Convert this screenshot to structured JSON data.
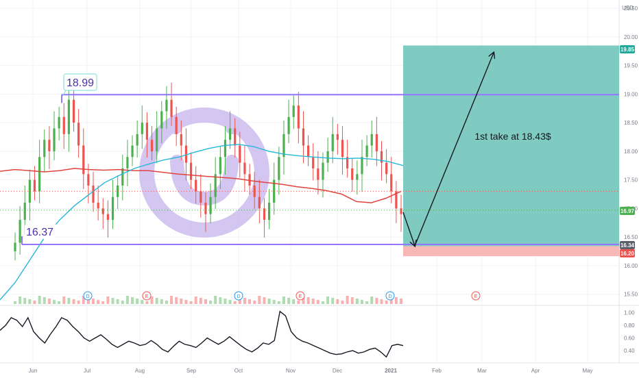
{
  "currency": "USD",
  "theme": {
    "purple": "#9575ff",
    "ma_fast": "#26b8d9",
    "ma_slow": "#e0433c",
    "profit_zone": "#7fcbc2",
    "loss_zone": "#f7b7b5",
    "candle_up": "#4caf50",
    "candle_down": "#ef5350",
    "logo": "#c9b8ee"
  },
  "annotations": {
    "resistance_label": "18.99",
    "support_label": "16.37",
    "take_profit_note": "1st take at 18.43$"
  },
  "price_badges": {
    "target": "19.85",
    "current": "16.97",
    "entry": "16.34",
    "stop": "16.20"
  },
  "event_markers": [
    "D",
    "E",
    "D",
    "E",
    "D",
    "E"
  ],
  "chart_data": [
    {
      "type": "candlestick",
      "x_ticks": [
        "Jun",
        "Jul",
        "Aug",
        "Sep",
        "Oct",
        "Nov",
        "Dec",
        "2021",
        "Feb",
        "Mar",
        "Apr",
        "May"
      ],
      "y_ticks": [
        "20.50",
        "20.00",
        "19.50",
        "19.00",
        "18.50",
        "18.00",
        "17.50",
        "17.00",
        "16.50",
        "16.00",
        "15.50"
      ],
      "ylim": [
        15.4,
        20.55
      ],
      "grid": true,
      "levels": {
        "resistance": 18.99,
        "support": 16.37,
        "target": 19.85,
        "current": 16.97,
        "entry": 16.34,
        "stop": 16.2
      },
      "series": [
        {
          "kind": "price",
          "values": [
            16.4,
            16.8,
            17.1,
            17.5,
            17.3,
            17.9,
            18.2,
            18.0,
            18.4,
            18.6,
            18.3,
            18.9,
            18.5,
            18.1,
            17.6,
            17.4,
            17.1,
            17.0,
            16.9,
            16.8,
            17.2,
            17.4,
            17.7,
            17.9,
            18.1,
            18.3,
            18.5,
            18.2,
            18.0,
            18.4,
            18.7,
            18.9,
            18.6,
            18.3,
            18.1,
            17.8,
            17.5,
            17.3,
            17.1,
            16.9,
            17.2,
            17.6,
            17.9,
            18.2,
            18.4,
            18.1,
            17.8,
            17.6,
            17.4,
            17.2,
            17.0,
            16.8,
            17.1,
            17.5,
            17.9,
            18.3,
            18.6,
            18.8,
            18.4,
            18.1,
            17.9,
            17.7,
            17.5,
            17.8,
            18.0,
            18.3,
            18.2,
            17.9,
            17.7,
            17.5,
            17.6,
            17.9,
            18.1,
            18.3,
            18.0,
            17.8,
            17.6,
            17.3,
            17.0,
            16.9
          ]
        },
        {
          "kind": "ma_fast",
          "values": [
            15.4,
            15.7,
            16.1,
            16.5,
            16.8,
            17.05,
            17.25,
            17.45,
            17.58,
            17.7,
            17.78,
            17.85,
            17.9,
            17.98,
            18.05,
            18.1,
            18.12,
            18.08,
            18.0,
            17.95,
            17.92,
            17.9,
            17.88,
            17.87,
            17.88,
            17.86,
            17.82,
            17.75
          ]
        },
        {
          "kind": "ma_slow",
          "values": [
            17.65,
            17.68,
            17.66,
            17.64,
            17.66,
            17.7,
            17.68,
            17.67,
            17.68,
            17.66,
            17.66,
            17.63,
            17.6,
            17.58,
            17.56,
            17.54,
            17.52,
            17.48,
            17.45,
            17.42,
            17.38,
            17.35,
            17.31,
            17.25,
            17.12,
            17.1,
            17.18,
            17.3
          ]
        }
      ]
    },
    {
      "type": "line",
      "y_ticks": [
        "1.00",
        "0.80",
        "0.60",
        "0.40"
      ],
      "ylim": [
        0.25,
        1.05
      ],
      "series": [
        {
          "values": [
            0.72,
            0.8,
            0.92,
            0.88,
            0.78,
            0.92,
            0.7,
            0.6,
            0.52,
            0.66,
            0.78,
            0.92,
            0.88,
            0.78,
            0.7,
            0.6,
            0.55,
            0.6,
            0.65,
            0.58,
            0.5,
            0.45,
            0.5,
            0.55,
            0.52,
            0.48,
            0.5,
            0.56,
            0.5,
            0.42,
            0.38,
            0.47,
            0.55,
            0.5,
            0.48,
            0.45,
            0.52,
            0.6,
            0.55,
            0.5,
            0.55,
            0.62,
            0.55,
            0.48,
            0.42,
            0.38,
            0.44,
            0.52,
            0.5,
            0.56,
            1.02,
            0.95,
            0.7,
            0.6,
            0.55,
            0.52,
            0.48,
            0.44,
            0.4,
            0.36,
            0.34,
            0.35,
            0.38,
            0.4,
            0.36,
            0.38,
            0.42,
            0.44,
            0.38,
            0.3,
            0.48,
            0.5,
            0.48
          ]
        }
      ]
    }
  ]
}
